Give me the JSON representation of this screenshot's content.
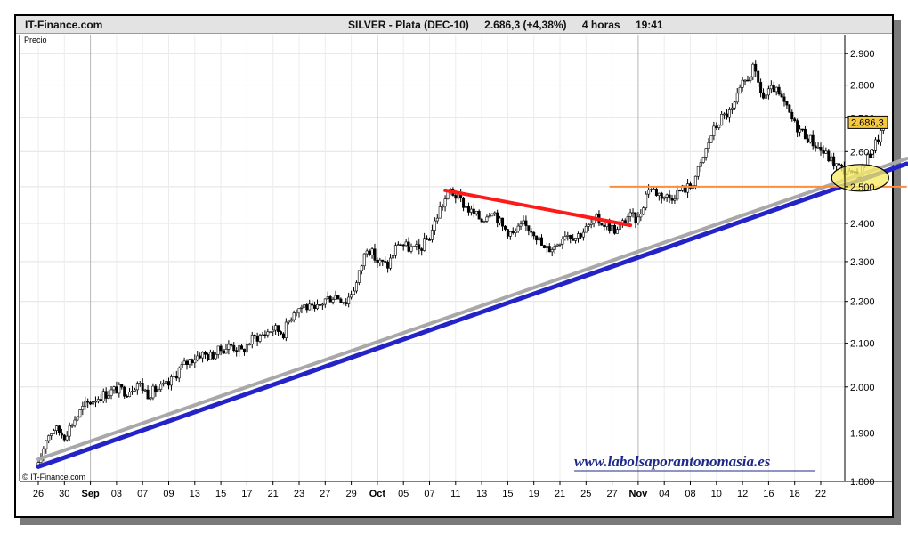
{
  "header": {
    "brand": "IT-Finance.com",
    "instrument": "SILVER - Plata (DEC-10)",
    "last": "2.686,3 (+4,38%)",
    "timeframe": "4 horas",
    "time": "19:41"
  },
  "panel_label": "Precio",
  "copyright": "© IT-Finance.com",
  "watermark": "www.labolsaporantonomasia.es",
  "colors": {
    "candle_up": "#ffffff",
    "candle_down": "#000000",
    "support_blue": "#2323c8",
    "support_grey": "#a8a8a8",
    "resistance_red": "#ff1a1a",
    "horizontal_orange": "#ff8c3a",
    "highlight_ellipse": "#f6ec64",
    "price_tag": "#f5c842"
  },
  "chart_data": {
    "type": "candlestick",
    "title": "SILVER - Plata (DEC-10)",
    "ylabel": "Precio",
    "ylim": [
      1800,
      2950
    ],
    "y_scale": "log",
    "yticks": [
      "1.800",
      "1.900",
      "2.000",
      "2.100",
      "2.200",
      "2.300",
      "2.400",
      "2.500",
      "2.600",
      "2.700",
      "2.800",
      "2.900"
    ],
    "y_values": [
      1800,
      1900,
      2000,
      2100,
      2200,
      2300,
      2400,
      2500,
      2600,
      2700,
      2800,
      2900
    ],
    "xticks": [
      "26",
      "30",
      "Sep",
      "03",
      "07",
      "09",
      "13",
      "15",
      "17",
      "21",
      "23",
      "27",
      "29",
      "Oct",
      "05",
      "07",
      "11",
      "13",
      "15",
      "19",
      "21",
      "25",
      "27",
      "Nov",
      "04",
      "08",
      "10",
      "12",
      "16",
      "18",
      "22"
    ],
    "month_ticks": [
      "Sep",
      "Oct",
      "Nov"
    ],
    "last_price_label": "2.686,3",
    "last_price": 2686.3,
    "close_path": [
      [
        0,
        1830
      ],
      [
        0.3,
        1890
      ],
      [
        0.6,
        1910
      ],
      [
        1.0,
        1895
      ],
      [
        1.4,
        1930
      ],
      [
        1.8,
        1960
      ],
      [
        2.2,
        1975
      ],
      [
        2.6,
        1985
      ],
      [
        3.0,
        1995
      ],
      [
        3.4,
        1990
      ],
      [
        3.8,
        2010
      ],
      [
        4.2,
        1985
      ],
      [
        4.6,
        1995
      ],
      [
        5.0,
        2005
      ],
      [
        5.4,
        2040
      ],
      [
        5.8,
        2060
      ],
      [
        6.2,
        2075
      ],
      [
        6.6,
        2070
      ],
      [
        7.0,
        2085
      ],
      [
        7.4,
        2095
      ],
      [
        7.8,
        2080
      ],
      [
        8.2,
        2110
      ],
      [
        8.6,
        2120
      ],
      [
        9.0,
        2135
      ],
      [
        9.4,
        2125
      ],
      [
        9.8,
        2180
      ],
      [
        10.2,
        2190
      ],
      [
        10.6,
        2175
      ],
      [
        11.0,
        2205
      ],
      [
        11.4,
        2215
      ],
      [
        11.8,
        2200
      ],
      [
        12.2,
        2245
      ],
      [
        12.6,
        2340
      ],
      [
        13.0,
        2300
      ],
      [
        13.4,
        2290
      ],
      [
        13.8,
        2350
      ],
      [
        14.2,
        2335
      ],
      [
        14.6,
        2330
      ],
      [
        15.0,
        2365
      ],
      [
        15.4,
        2440
      ],
      [
        15.8,
        2490
      ],
      [
        16.2,
        2460
      ],
      [
        16.6,
        2430
      ],
      [
        17.0,
        2410
      ],
      [
        17.4,
        2440
      ],
      [
        17.8,
        2390
      ],
      [
        18.2,
        2370
      ],
      [
        18.6,
        2395
      ],
      [
        19.0,
        2380
      ],
      [
        19.4,
        2330
      ],
      [
        19.8,
        2340
      ],
      [
        20.2,
        2375
      ],
      [
        20.6,
        2365
      ],
      [
        21.0,
        2385
      ],
      [
        21.4,
        2410
      ],
      [
        21.8,
        2395
      ],
      [
        22.2,
        2380
      ],
      [
        22.6,
        2420
      ],
      [
        23.0,
        2410
      ],
      [
        23.4,
        2500
      ],
      [
        23.8,
        2480
      ],
      [
        24.2,
        2470
      ],
      [
        24.6,
        2490
      ],
      [
        25.0,
        2500
      ],
      [
        25.4,
        2560
      ],
      [
        25.8,
        2650
      ],
      [
        26.2,
        2700
      ],
      [
        26.6,
        2720
      ],
      [
        27.0,
        2800
      ],
      [
        27.4,
        2850
      ],
      [
        27.8,
        2760
      ],
      [
        28.2,
        2790
      ],
      [
        28.6,
        2740
      ],
      [
        29.0,
        2680
      ],
      [
        29.4,
        2650
      ],
      [
        29.8,
        2620
      ],
      [
        30.2,
        2590
      ],
      [
        30.6,
        2560
      ],
      [
        31.0,
        2540
      ],
      [
        31.4,
        2525
      ],
      [
        31.8,
        2580
      ],
      [
        32.2,
        2640
      ],
      [
        32.5,
        2686
      ]
    ],
    "trendlines": [
      {
        "name": "support-blue",
        "from": [
          0,
          1830
        ],
        "to": [
          33.3,
          2565
        ]
      },
      {
        "name": "support-grey",
        "from": [
          0,
          1845
        ],
        "to": [
          33.3,
          2580
        ]
      },
      {
        "name": "resistance-red",
        "from": [
          15.6,
          2490
        ],
        "to": [
          22.7,
          2395
        ]
      },
      {
        "name": "horizontal-orange",
        "level": 2500,
        "from_x": 21.9,
        "to_x": 33.3
      }
    ],
    "highlight": {
      "label": "support-zone",
      "x": 31.0,
      "y": 2525
    },
    "grid": true,
    "legend": "none"
  }
}
